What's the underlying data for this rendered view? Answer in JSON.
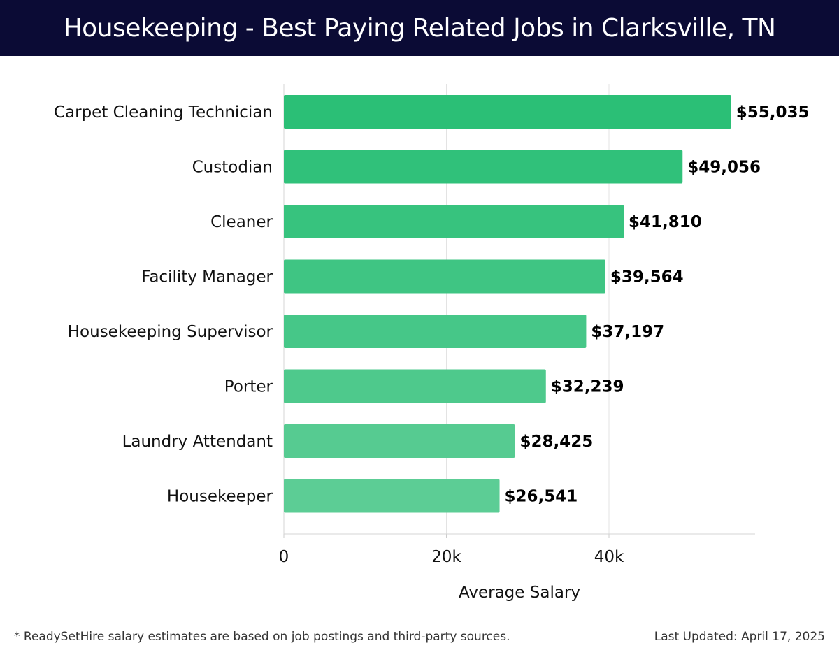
{
  "header": {
    "title": "Housekeeping - Best Paying Related Jobs in Clarksville, TN"
  },
  "chart_data": {
    "type": "bar",
    "orientation": "horizontal",
    "title": "Housekeeping - Best Paying Related Jobs in Clarksville, TN",
    "xlabel": "Average Salary",
    "ylabel": "",
    "xlim": [
      0,
      58000
    ],
    "xticks": [
      0,
      20000,
      40000
    ],
    "xtick_labels": [
      "0",
      "20k",
      "40k"
    ],
    "grid": true,
    "categories": [
      "Carpet Cleaning Technician",
      "Custodian",
      "Cleaner",
      "Facility Manager",
      "Housekeeping Supervisor",
      "Porter",
      "Laundry Attendant",
      "Housekeeper"
    ],
    "values": [
      55035,
      49056,
      41810,
      39564,
      37197,
      32239,
      28425,
      26541
    ],
    "value_labels": [
      "$55,035",
      "$49,056",
      "$41,810",
      "$39,564",
      "$37,197",
      "$32,239",
      "$28,425",
      "$26,541"
    ],
    "bar_colors": [
      "#2bbf76",
      "#30c17a",
      "#37c37e",
      "#3fc583",
      "#46c788",
      "#4ec98c",
      "#56cb91",
      "#5ccd95"
    ]
  },
  "footer": {
    "note": "* ReadySetHire salary estimates are based on job postings and third-party sources.",
    "updated": "Last Updated: April 17, 2025"
  }
}
